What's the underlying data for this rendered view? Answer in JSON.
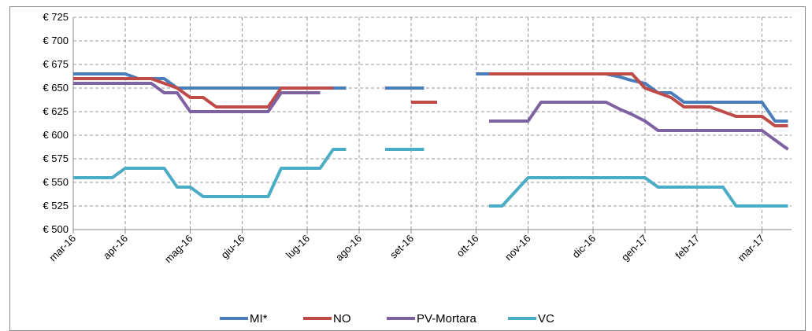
{
  "chart_data": {
    "type": "line",
    "categories": [
      "mar-16",
      null,
      null,
      null,
      "apr-16",
      null,
      null,
      null,
      null,
      "mag-16",
      null,
      null,
      null,
      "giu-16",
      null,
      null,
      null,
      null,
      "lug-16",
      null,
      null,
      null,
      "ago-16",
      null,
      null,
      null,
      "set-16",
      null,
      null,
      null,
      null,
      "ott-16",
      null,
      null,
      null,
      "nov-16",
      null,
      null,
      null,
      null,
      "dic-16",
      null,
      null,
      null,
      "gen-17",
      null,
      null,
      null,
      "feb-17",
      null,
      null,
      null,
      null,
      "mar-17",
      null,
      null
    ],
    "series": [
      {
        "name": "MI*",
        "color": "#4a7ebb",
        "values": [
          665,
          665,
          665,
          665,
          665,
          660,
          660,
          660,
          650,
          650,
          650,
          650,
          650,
          650,
          650,
          650,
          650,
          650,
          650,
          650,
          650,
          650,
          null,
          null,
          650,
          650,
          650,
          650,
          null,
          null,
          null,
          665,
          665,
          665,
          665,
          665,
          665,
          665,
          665,
          665,
          665,
          665,
          662,
          658,
          655,
          645,
          645,
          635,
          635,
          635,
          635,
          635,
          635,
          635,
          615,
          615
        ]
      },
      {
        "name": "NO",
        "color": "#be4b48",
        "values": [
          660,
          660,
          660,
          660,
          660,
          660,
          660,
          655,
          650,
          640,
          640,
          630,
          630,
          630,
          630,
          630,
          650,
          650,
          650,
          650,
          650,
          null,
          null,
          null,
          null,
          null,
          635,
          635,
          635,
          null,
          null,
          null,
          665,
          665,
          665,
          665,
          665,
          665,
          665,
          665,
          665,
          665,
          665,
          665,
          650,
          645,
          640,
          630,
          630,
          630,
          625,
          620,
          620,
          620,
          610,
          610
        ]
      },
      {
        "name": "PV-Mortara",
        "color": "#7e62a1",
        "values": [
          655,
          655,
          655,
          655,
          655,
          655,
          655,
          645,
          645,
          625,
          625,
          625,
          625,
          625,
          625,
          625,
          645,
          645,
          645,
          645,
          null,
          null,
          null,
          null,
          null,
          null,
          null,
          null,
          null,
          null,
          null,
          null,
          615,
          615,
          615,
          615,
          635,
          635,
          635,
          635,
          635,
          635,
          628,
          622,
          615,
          605,
          605,
          605,
          605,
          605,
          605,
          605,
          605,
          605,
          595,
          585
        ]
      },
      {
        "name": "VC",
        "color": "#4bacc6",
        "values": [
          555,
          555,
          555,
          555,
          565,
          565,
          565,
          565,
          545,
          545,
          535,
          535,
          535,
          535,
          535,
          535,
          565,
          565,
          565,
          565,
          585,
          585,
          null,
          null,
          585,
          585,
          585,
          585,
          null,
          null,
          null,
          null,
          525,
          525,
          540,
          555,
          555,
          555,
          555,
          555,
          555,
          555,
          555,
          555,
          555,
          545,
          545,
          545,
          545,
          545,
          545,
          525,
          525,
          525,
          525,
          525
        ]
      }
    ],
    "ylim": [
      500,
      725
    ],
    "yticks": [
      {
        "value": 500,
        "label": "€ 500"
      },
      {
        "value": 525,
        "label": "€ 525"
      },
      {
        "value": 550,
        "label": "€ 550"
      },
      {
        "value": 575,
        "label": "€ 575"
      },
      {
        "value": 600,
        "label": "€ 600"
      },
      {
        "value": 625,
        "label": "€ 625"
      },
      {
        "value": 650,
        "label": "€ 650"
      },
      {
        "value": 675,
        "label": "€ 675"
      },
      {
        "value": 700,
        "label": "€ 700"
      },
      {
        "value": 725,
        "label": "€ 725"
      }
    ],
    "grid": true,
    "legend": "bottom"
  }
}
